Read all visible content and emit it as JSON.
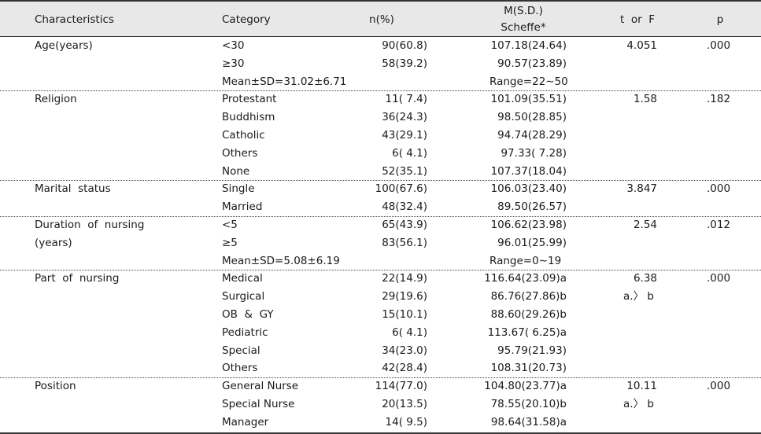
{
  "header": {
    "characteristics": "Characteristics",
    "category": "Category",
    "n_pct": "n(%)",
    "msd_line1": "M(S.D.)",
    "msd_line2": "Scheffe*",
    "tf": "t  or  F",
    "p": "p"
  },
  "groups": [
    {
      "name": [
        "Age(years)"
      ],
      "rows": [
        {
          "category": "<30",
          "n": "90(60.8)",
          "m": "107.18(24.64)",
          "t": "4.051",
          "p": ".000"
        },
        {
          "category": "≥30",
          "n": "58(39.2)",
          "m": "90.57(23.89)",
          "t": "",
          "p": ""
        },
        {
          "category": "Mean±SD=31.02±6.71",
          "n": "",
          "m": "Range=22∼50",
          "t": "",
          "p": "",
          "note": true
        }
      ]
    },
    {
      "name": [
        "Religion"
      ],
      "rows": [
        {
          "category": "Protestant",
          "n": "11( 7.4)",
          "m": "101.09(35.51)",
          "t": "1.58",
          "p": ".182"
        },
        {
          "category": "Buddhism",
          "n": "36(24.3)",
          "m": "98.50(28.85)",
          "t": "",
          "p": ""
        },
        {
          "category": "Catholic",
          "n": "43(29.1)",
          "m": "94.74(28.29)",
          "t": "",
          "p": ""
        },
        {
          "category": "Others",
          "n": "6( 4.1)",
          "m": "97.33( 7.28)",
          "t": "",
          "p": ""
        },
        {
          "category": "None",
          "n": "52(35.1)",
          "m": "107.37(18.04)",
          "t": "",
          "p": ""
        }
      ]
    },
    {
      "name": [
        "Marital  status"
      ],
      "rows": [
        {
          "category": "Single",
          "n": "100(67.6)",
          "m": "106.03(23.40)",
          "t": "3.847",
          "p": ".000"
        },
        {
          "category": "Married",
          "n": "48(32.4)",
          "m": "89.50(26.57)",
          "t": "",
          "p": ""
        }
      ]
    },
    {
      "name": [
        "Duration  of  nursing",
        "(years)"
      ],
      "rows": [
        {
          "category": "<5",
          "n": "65(43.9)",
          "m": "106.62(23.98)",
          "t": "2.54",
          "p": ".012"
        },
        {
          "category": "≥5",
          "n": "83(56.1)",
          "m": "96.01(25.99)",
          "t": "",
          "p": ""
        },
        {
          "category": "Mean±SD=5.08±6.19",
          "n": "",
          "m": "Range=0∼19",
          "t": "",
          "p": "",
          "note": true
        }
      ]
    },
    {
      "name": [
        "Part  of  nursing"
      ],
      "rows": [
        {
          "category": "Medical",
          "n": "22(14.9)",
          "m": "116.64(23.09)a",
          "t": "6.38",
          "p": ".000"
        },
        {
          "category": "Surgical",
          "n": "29(19.6)",
          "m": "86.76(27.86)b",
          "t": "a.〉 b",
          "p": ""
        },
        {
          "category": "OB  &  GY",
          "n": "15(10.1)",
          "m": "88.60(29.26)b",
          "t": "",
          "p": ""
        },
        {
          "category": "Pediatric",
          "n": "6( 4.1)",
          "m": "113.67( 6.25)a",
          "t": "",
          "p": ""
        },
        {
          "category": "Special",
          "n": "34(23.0)",
          "m": "95.79(21.93)",
          "t": "",
          "p": ""
        },
        {
          "category": "Others",
          "n": "42(28.4)",
          "m": "108.31(20.73)",
          "t": "",
          "p": ""
        }
      ]
    },
    {
      "name": [
        "Position"
      ],
      "rows": [
        {
          "category": "General Nurse",
          "n": "114(77.0)",
          "m": "104.80(23.77)a",
          "t": "10.11",
          "p": ".000"
        },
        {
          "category": "Special Nurse",
          "n": "20(13.5)",
          "m": "78.55(20.10)b",
          "t": "a.〉 b",
          "p": ""
        },
        {
          "category": "Manager",
          "n": "14( 9.5)",
          "m": "98.64(31.58)a",
          "t": "",
          "p": ""
        }
      ]
    }
  ]
}
